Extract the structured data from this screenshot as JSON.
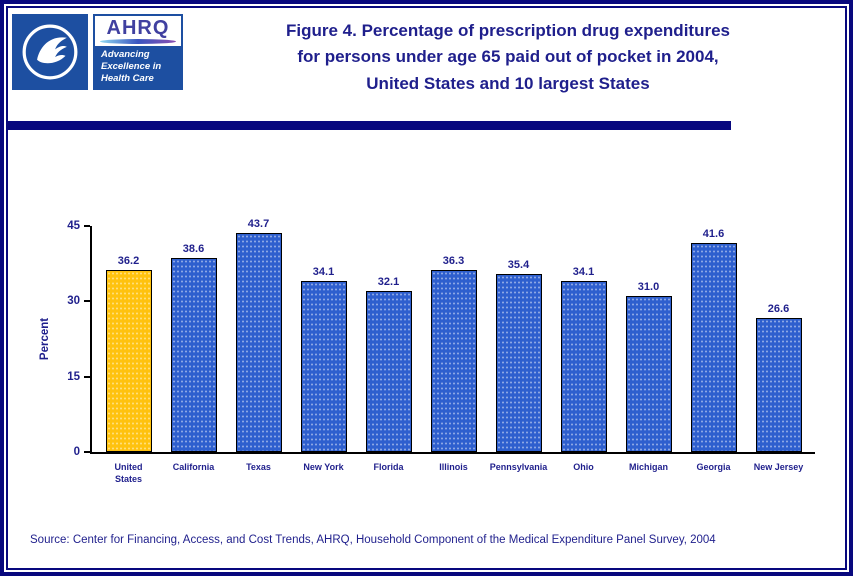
{
  "colors": {
    "navy_border": "#08087E",
    "navy_text": "#1F1F8C",
    "logo_blue": "#1D4FA1"
  },
  "header": {
    "ahrq_logo": {
      "acronym": "AHRQ",
      "tagline": "Advancing\nExcellence in\nHealth Care"
    },
    "title_lines": [
      "Figure 4. Percentage of prescription drug expenditures",
      "for persons under age 65 paid out of pocket in 2004,",
      "United States and 10 largest States"
    ]
  },
  "chart_data": {
    "type": "bar",
    "title": "Figure 4. Percentage of prescription drug expenditures for persons under age 65 paid out of pocket in 2004, United States and 10 largest States",
    "xlabel": "",
    "ylabel": "Percent",
    "categories": [
      "United States",
      "California",
      "Texas",
      "New York",
      "Florida",
      "Illinois",
      "Pennsylvania",
      "Ohio",
      "Michigan",
      "Georgia",
      "New Jersey"
    ],
    "values": [
      36.2,
      38.6,
      43.7,
      34.1,
      32.1,
      36.3,
      35.4,
      34.1,
      31.0,
      41.6,
      26.6
    ],
    "value_labels": [
      "36.2",
      "38.6",
      "43.7",
      "34.1",
      "32.1",
      "36.3",
      "35.4",
      "34.1",
      "31.0",
      "41.6",
      "26.6"
    ],
    "xlabels_display": [
      "United\nStates",
      "California",
      "Texas",
      "New York",
      "Florida",
      "Illinois",
      "Pennsylvania",
      "Ohio",
      "Michigan",
      "Georgia",
      "New Jersey"
    ],
    "yticks": [
      0,
      15,
      30,
      45
    ],
    "ylim": [
      0,
      45
    ],
    "highlight_index": 0,
    "bar_color_default": "#2E5FCE",
    "bar_color_highlight": "#FFC20E",
    "grid": false,
    "legend": false
  },
  "footer": {
    "source": "Source: Center for Financing, Access, and Cost Trends, AHRQ, Household Component of the Medical Expenditure Panel Survey, 2004"
  }
}
